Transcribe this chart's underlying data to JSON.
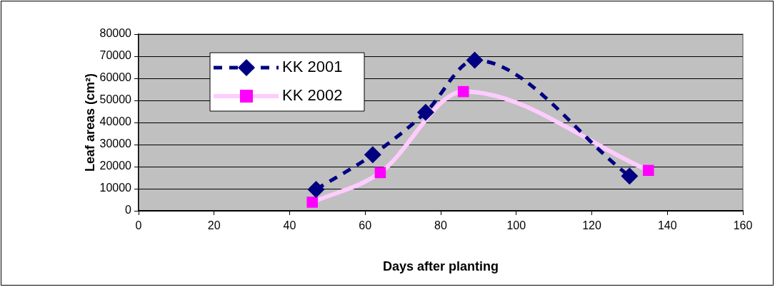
{
  "chart_data": {
    "type": "line",
    "xlabel": "Days after planting",
    "ylabel": "Leaf areas (cm²)",
    "xlim": [
      0,
      160
    ],
    "xticks": [
      0,
      20,
      40,
      60,
      80,
      100,
      120,
      140,
      160
    ],
    "ylim": [
      0,
      80000
    ],
    "yticks": [
      0,
      10000,
      20000,
      30000,
      40000,
      50000,
      60000,
      70000,
      80000
    ],
    "grid": "y",
    "legend": "top left",
    "series": [
      {
        "name": "KK 2001",
        "color": "#000080",
        "marker": "diamond",
        "line_style": "dashed",
        "x": [
          47,
          62,
          76,
          89,
          130
        ],
        "values": [
          9700,
          25400,
          44600,
          68200,
          15700
        ]
      },
      {
        "name": "KK 2002",
        "color": "#ffccff",
        "colors": [
          "#ff00ff",
          "#ff00ff",
          "#ff00ff",
          "#ff00ff"
        ],
        "marker": "square",
        "line_style": "solid",
        "x": [
          46,
          64,
          86,
          135
        ],
        "values": [
          3900,
          17300,
          54000,
          18300
        ]
      }
    ]
  }
}
